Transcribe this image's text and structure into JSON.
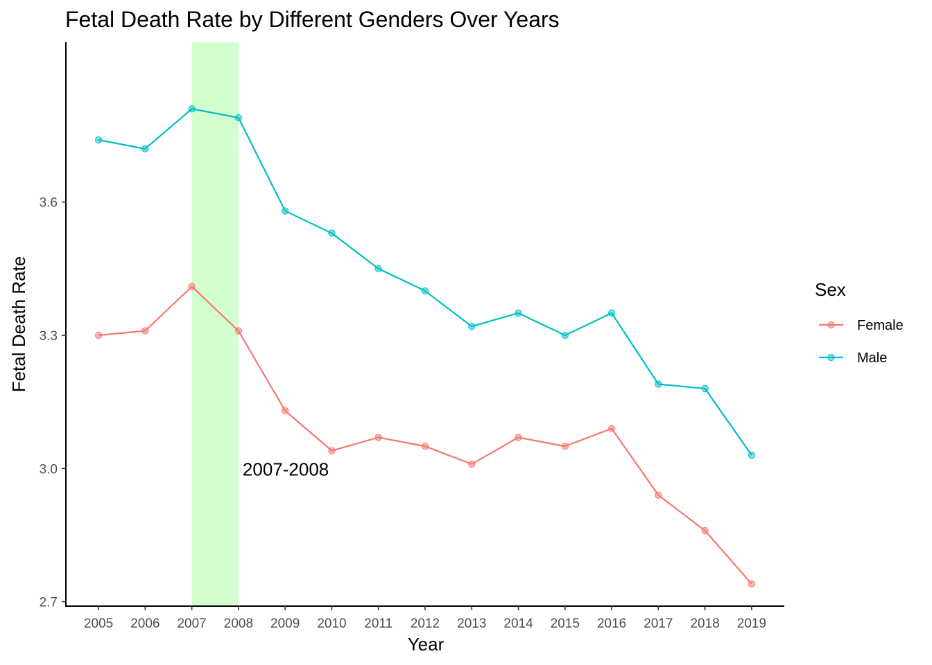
{
  "chart_data": {
    "type": "line",
    "title": "Fetal Death Rate by Different Genders Over Years",
    "xlabel": "Year",
    "ylabel": "Fetal Death Rate",
    "x": [
      2005,
      2006,
      2007,
      2008,
      2009,
      2010,
      2011,
      2012,
      2013,
      2014,
      2015,
      2016,
      2017,
      2018,
      2019
    ],
    "x_tick_labels": [
      "2005",
      "2006",
      "2007",
      "2008",
      "2009",
      "2010",
      "2011",
      "2012",
      "2013",
      "2014",
      "2015",
      "2016",
      "2017",
      "2018",
      "2019"
    ],
    "y_ticks": [
      2.7,
      3.0,
      3.3,
      3.6
    ],
    "y_tick_labels": [
      "2.7",
      "3.0",
      "3.3",
      "3.6"
    ],
    "ylim": [
      2.69,
      3.96
    ],
    "xlim": [
      2004.3,
      2019.7
    ],
    "grid": false,
    "legend": {
      "title": "Sex",
      "placement": "right"
    },
    "series": [
      {
        "name": "Female",
        "color": "#F8766D",
        "values": [
          3.3,
          3.31,
          3.41,
          3.31,
          3.13,
          3.04,
          3.07,
          3.05,
          3.01,
          3.07,
          3.05,
          3.09,
          2.94,
          2.86,
          2.74
        ]
      },
      {
        "name": "Male",
        "color": "#00BFC4",
        "values": [
          3.74,
          3.72,
          3.81,
          3.79,
          3.58,
          3.53,
          3.45,
          3.4,
          3.32,
          3.35,
          3.3,
          3.35,
          3.19,
          3.18,
          3.03
        ]
      }
    ],
    "highlight": {
      "x_start": 2007,
      "x_end": 2008,
      "color": "#D3FFD0",
      "label": "2007-2008",
      "label_y": 3.0
    }
  }
}
